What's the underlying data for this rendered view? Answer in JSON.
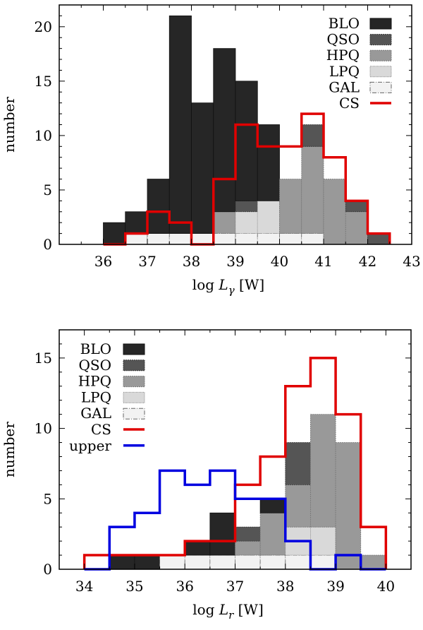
{
  "chart_data": [
    {
      "type": "bar",
      "stacked": true,
      "xlabel": "log Lγ [W]",
      "xlabel_main": "log ",
      "xlabel_var": "L",
      "xlabel_sub": "γ",
      "xlabel_unit": " [W]",
      "ylabel": "number",
      "xlim": [
        35,
        43
      ],
      "ylim": [
        0,
        22
      ],
      "xticks": [
        "36",
        "37",
        "38",
        "39",
        "40",
        "41",
        "42",
        "43"
      ],
      "yticks": [
        "0",
        "5",
        "10",
        "15",
        "20"
      ],
      "bin_width": 0.5,
      "bins": [
        36.0,
        36.5,
        37.0,
        37.5,
        38.0,
        38.5,
        39.0,
        39.5,
        40.0,
        40.5,
        41.0,
        41.5,
        42.0
      ],
      "series": [
        {
          "name": "GAL",
          "color": "#f2f2f2",
          "values": [
            0,
            1,
            1,
            1,
            1,
            1,
            1,
            1,
            1,
            1,
            0,
            0,
            0
          ]
        },
        {
          "name": "LPQ",
          "color": "#d9d9d9",
          "values": [
            0,
            0,
            0,
            0,
            0,
            0,
            2,
            3,
            0,
            0,
            0,
            0,
            0
          ]
        },
        {
          "name": "HPQ",
          "color": "#999999",
          "values": [
            0,
            0,
            0,
            0,
            0,
            2,
            0,
            0,
            5,
            8,
            6,
            3,
            0
          ]
        },
        {
          "name": "QSO",
          "color": "#555555",
          "values": [
            0,
            0,
            0,
            0,
            0,
            0,
            1,
            0,
            0,
            2,
            0,
            1,
            1
          ]
        },
        {
          "name": "BLO",
          "color": "#262626",
          "values": [
            2,
            2,
            5,
            20,
            12,
            15,
            11,
            7,
            0,
            0,
            0,
            0,
            0
          ]
        }
      ],
      "outline_series": [
        {
          "name": "CS",
          "color": "#e00000",
          "values": [
            0,
            1,
            3,
            2,
            0,
            6,
            11,
            9,
            9,
            12,
            8,
            4,
            1
          ]
        }
      ],
      "legend": [
        "BLO",
        "QSO",
        "HPQ",
        "LPQ",
        "GAL",
        "CS"
      ],
      "legend_position": "top-right"
    },
    {
      "type": "bar",
      "stacked": true,
      "xlabel": "log Lr [W]",
      "xlabel_main": "log ",
      "xlabel_var": "L",
      "xlabel_sub": "r",
      "xlabel_unit": " [W]",
      "ylabel": "number",
      "xlim": [
        33.5,
        40.5
      ],
      "ylim": [
        0,
        17
      ],
      "xticks": [
        "34",
        "35",
        "36",
        "37",
        "38",
        "39",
        "40"
      ],
      "yticks": [
        "0",
        "5",
        "10",
        "15"
      ],
      "bin_width": 0.5,
      "bins": [
        34.0,
        34.5,
        35.0,
        35.5,
        36.0,
        36.5,
        37.0,
        37.5,
        38.0,
        38.5,
        39.0,
        39.5
      ],
      "series": [
        {
          "name": "GAL",
          "color": "#f2f2f2",
          "values": [
            0,
            0,
            0,
            1,
            1,
            1,
            1,
            1,
            1,
            1,
            0,
            0
          ]
        },
        {
          "name": "LPQ",
          "color": "#d9d9d9",
          "values": [
            0,
            0,
            0,
            0,
            0,
            0,
            0,
            0,
            2,
            2,
            0,
            0
          ]
        },
        {
          "name": "HPQ",
          "color": "#999999",
          "values": [
            0,
            0,
            0,
            0,
            0,
            0,
            1,
            3,
            3,
            8,
            9,
            1
          ]
        },
        {
          "name": "QSO",
          "color": "#555555",
          "values": [
            0,
            0,
            0,
            0,
            0,
            0,
            1,
            0,
            3,
            0,
            0,
            0
          ]
        },
        {
          "name": "BLO",
          "color": "#262626",
          "values": [
            0,
            1,
            1,
            0,
            1,
            3,
            0,
            1,
            0,
            0,
            0,
            0
          ]
        }
      ],
      "outline_series": [
        {
          "name": "CS",
          "color": "#e00000",
          "values": [
            1,
            1,
            1,
            1,
            2,
            2,
            6,
            8,
            13,
            15,
            11,
            3
          ]
        },
        {
          "name": "upper",
          "color": "#0000e0",
          "values": [
            0,
            3,
            4,
            7,
            6,
            7,
            5,
            5,
            2,
            0,
            1,
            0
          ]
        }
      ],
      "legend": [
        "BLO",
        "QSO",
        "HPQ",
        "LPQ",
        "GAL",
        "CS",
        "upper"
      ],
      "legend_position": "top-left"
    }
  ]
}
